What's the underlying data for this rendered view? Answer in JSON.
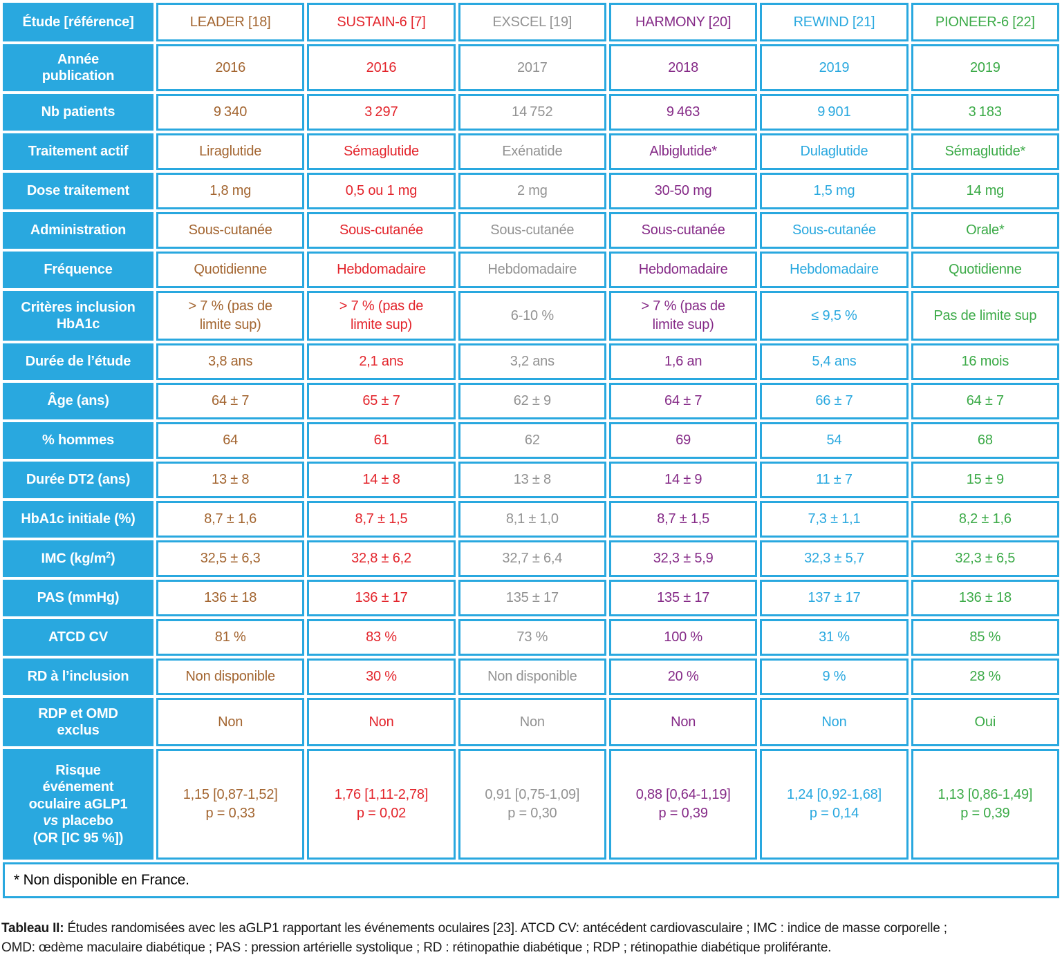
{
  "colors": {
    "table_blue": "#29A8DF",
    "leader_brown": "#A36530",
    "sustain_red": "#E3242B",
    "exscel_gray": "#929292",
    "harmony_purple": "#852A87",
    "rewind_blue": "#29A8DF",
    "pioneer_green": "#3BAA47"
  },
  "table": {
    "corner_label": "Étude [référence]",
    "studies": [
      {
        "name": "LEADER [18]",
        "color": "#A36530"
      },
      {
        "name": "SUSTAIN-6 [7]",
        "color": "#E3242B"
      },
      {
        "name": "EXSCEL [19]",
        "color": "#929292"
      },
      {
        "name": "HARMONY [20]",
        "color": "#852A87"
      },
      {
        "name": "REWIND [21]",
        "color": "#29A8DF"
      },
      {
        "name": "PIONEER-6 [22]",
        "color": "#3BAA47"
      }
    ],
    "rows": [
      {
        "label": "Année\npublication",
        "values": [
          "2016",
          "2016",
          "2017",
          "2018",
          "2019",
          "2019"
        ]
      },
      {
        "label": "Nb patients",
        "values": [
          "9 340",
          "3 297",
          "14 752",
          "9 463",
          "9 901",
          "3 183"
        ]
      },
      {
        "label": "Traitement actif",
        "values": [
          "Liraglutide",
          "Sémaglutide",
          "Exénatide",
          "Albiglutide*",
          "Dulaglutide",
          "Sémaglutide*"
        ]
      },
      {
        "label": "Dose traitement",
        "values": [
          "1,8 mg",
          "0,5 ou 1 mg",
          "2 mg",
          "30-50 mg",
          "1,5 mg",
          "14 mg"
        ]
      },
      {
        "label": "Administration",
        "values": [
          "Sous-cutanée",
          "Sous-cutanée",
          "Sous-cutanée",
          "Sous-cutanée",
          "Sous-cutanée",
          "Orale*"
        ]
      },
      {
        "label": "Fréquence",
        "values": [
          "Quotidienne",
          "Hebdomadaire",
          "Hebdomadaire",
          "Hebdomadaire",
          "Hebdomadaire",
          "Quotidienne"
        ]
      },
      {
        "label": "Critères inclusion\nHbA1c",
        "values": [
          "> 7 % (pas de\nlimite sup)",
          "> 7 % (pas de\nlimite sup)",
          "6-10 %",
          "> 7 % (pas de\nlimite sup)",
          "≤ 9,5 %",
          "Pas de limite sup"
        ]
      },
      {
        "label": "Durée de l’étude",
        "values": [
          "3,8 ans",
          "2,1 ans",
          "3,2 ans",
          "1,6 an",
          "5,4 ans",
          "16 mois"
        ]
      },
      {
        "label": "Âge (ans)",
        "values": [
          "64 ± 7",
          "65 ± 7",
          "62 ± 9",
          "64 ± 7",
          "66 ± 7",
          "64 ± 7"
        ]
      },
      {
        "label": "% hommes",
        "values": [
          "64",
          "61",
          "62",
          "69",
          "54",
          "68"
        ]
      },
      {
        "label": "Durée DT2 (ans)",
        "values": [
          "13 ± 8",
          "14 ± 8",
          "13 ± 8",
          "14 ± 9",
          "11 ± 7",
          "15 ± 9"
        ]
      },
      {
        "label": "HbA1c initiale (%)",
        "values": [
          "8,7 ± 1,6",
          "8,7 ± 1,5",
          "8,1 ± 1,0",
          "8,7 ± 1,5",
          "7,3 ± 1,1",
          "8,2 ± 1,6"
        ]
      },
      {
        "label": "IMC (kg/m²)",
        "values": [
          "32,5 ± 6,3",
          "32,8 ± 6,2",
          "32,7 ± 6,4",
          "32,3 ± 5,9",
          "32,3 ± 5,7",
          "32,3 ± 6,5"
        ]
      },
      {
        "label": "PAS (mmHg)",
        "values": [
          "136 ± 18",
          "136 ± 17",
          "135 ± 17",
          "135 ± 17",
          "137 ± 17",
          "136 ± 18"
        ]
      },
      {
        "label": "ATCD CV",
        "values": [
          "81 %",
          "83 %",
          "73 %",
          "100 %",
          "31 %",
          "85 %"
        ]
      },
      {
        "label": "RD à l’inclusion",
        "values": [
          "Non disponible",
          "30 %",
          "Non disponible",
          "20 %",
          "9 %",
          "28 %"
        ]
      },
      {
        "label": "RDP et OMD\nexclus",
        "values": [
          "Non",
          "Non",
          "Non",
          "Non",
          "Non",
          "Oui"
        ]
      },
      {
        "label": "Risque\névénement\noculaire aGLP1\nvs placebo\n(OR [IC 95 %])",
        "values": [
          "1,15 [0,87-1,52]\np = 0,33",
          "1,76 [1,11-2,78]\np = 0,02",
          "0,91 [0,75-1,09]\np = 0,30",
          "0,88 [0,64-1,19]\np = 0,39",
          "1,24 [0,92-1,68]\np = 0,14",
          "1,13 [0,86-1,49]\np = 0,39"
        ]
      }
    ]
  },
  "footnote": "* Non disponible en France.",
  "caption": {
    "label": "Tableau II:",
    "line1_rest": " Études randomisées avec les aGLP1 rapportant les événements oculaires [23]. ATCD CV: antécédent cardiovasculaire ; IMC : indice de masse corporelle ;",
    "line2": "OMD: œdème maculaire diabétique ; PAS : pression artérielle systolique ; RD : rétinopathie diabétique ; RDP ; rétinopathie diabétique proliférante."
  }
}
